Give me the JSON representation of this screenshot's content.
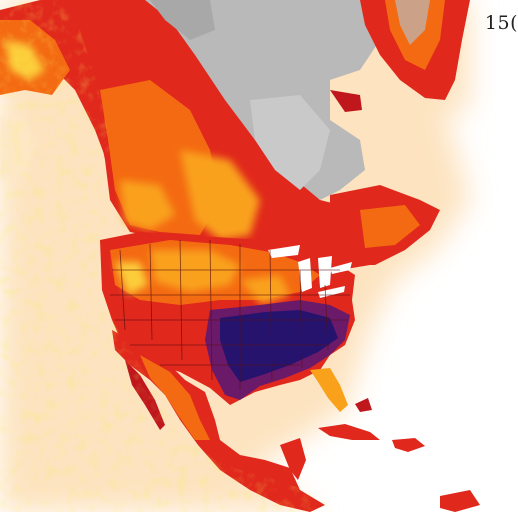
{
  "map": {
    "corner_label": "15(",
    "palette": {
      "water": "#ffffff",
      "ice_grey": "#b9b9b9",
      "deep_red": "#c0171d",
      "red": "#e0281c",
      "orange": "#f46a12",
      "amber": "#f9a11a",
      "yellow": "#fccd3a",
      "pale": "#fde8c6",
      "hot_core": "#25136e",
      "hot_mid": "#6b1a6a",
      "border": "#5a0f0f"
    },
    "icons": {
      "map_surface": "heatmap-map",
      "legend": "none"
    }
  }
}
